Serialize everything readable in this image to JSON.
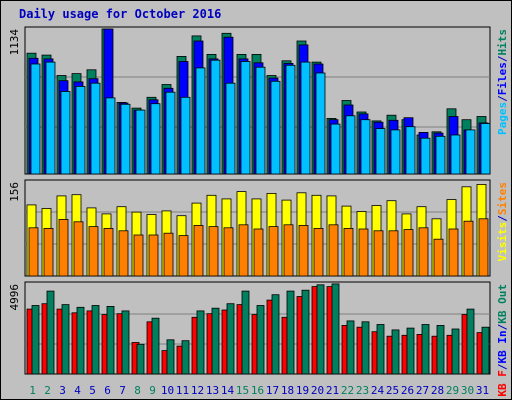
{
  "title": "Daily usage for October 2016",
  "colors": {
    "background": "#c0c0c0",
    "title": "#0000c0",
    "grid": "#808080",
    "pages": "#00c0ff",
    "files": "#0000ff",
    "hits": "#00805f",
    "visits": "#ffff00",
    "sites": "#ff8000",
    "kb_in": "#00805f",
    "kb_out": "#008080",
    "kb_f": "#ff0000",
    "weekend_label": "#00805f",
    "weekday_label": "#0000c0"
  },
  "chart_data": [
    {
      "type": "bar",
      "panel": "pages-files-hits",
      "ymax_label": "1134",
      "ylim": [
        0,
        1134
      ],
      "legend": [
        "Pages",
        "/",
        "Files",
        "/",
        "Hits"
      ],
      "categories": [
        "1",
        "2",
        "3",
        "4",
        "5",
        "6",
        "7",
        "8",
        "9",
        "10",
        "11",
        "12",
        "13",
        "14",
        "15",
        "16",
        "17",
        "18",
        "19",
        "20",
        "21",
        "22",
        "23",
        "24",
        "25",
        "26",
        "27",
        "28",
        "29",
        "30",
        "31"
      ],
      "series": [
        {
          "name": "Hits",
          "values": [
            945,
            930,
            770,
            785,
            815,
            1134,
            560,
            515,
            600,
            700,
            920,
            1080,
            935,
            1100,
            935,
            935,
            770,
            885,
            1040,
            875,
            435,
            575,
            485,
            415,
            460,
            425,
            305,
            330,
            510,
            425,
            450
          ]
        },
        {
          "name": "Files",
          "values": [
            905,
            900,
            730,
            720,
            745,
            1134,
            555,
            500,
            580,
            670,
            880,
            1040,
            900,
            1070,
            900,
            870,
            750,
            865,
            1010,
            860,
            425,
            540,
            470,
            405,
            420,
            440,
            325,
            320,
            450,
            345,
            400
          ]
        },
        {
          "name": "Pages",
          "values": [
            860,
            875,
            645,
            685,
            710,
            595,
            545,
            500,
            550,
            640,
            600,
            830,
            890,
            710,
            880,
            835,
            725,
            850,
            875,
            790,
            390,
            455,
            425,
            355,
            345,
            370,
            280,
            295,
            305,
            345,
            395
          ]
        }
      ]
    },
    {
      "type": "bar",
      "panel": "visits-sites",
      "ymax_label": "156",
      "ylim": [
        0,
        156
      ],
      "legend": [
        "Visits",
        "/",
        "Sites"
      ],
      "categories": [
        "1",
        "2",
        "3",
        "4",
        "5",
        "6",
        "7",
        "8",
        "9",
        "10",
        "11",
        "12",
        "13",
        "14",
        "15",
        "16",
        "17",
        "18",
        "19",
        "20",
        "21",
        "22",
        "23",
        "24",
        "25",
        "26",
        "27",
        "28",
        "29",
        "30",
        "31"
      ],
      "series": [
        {
          "name": "Visits",
          "values": [
            118,
            112,
            133,
            135,
            113,
            103,
            115,
            106,
            102,
            108,
            100,
            121,
            134,
            128,
            140,
            128,
            137,
            126,
            138,
            134,
            133,
            116,
            107,
            117,
            125,
            103,
            115,
            95,
            127,
            148,
            152
          ]
        },
        {
          "name": "Sites",
          "values": [
            80,
            79,
            94,
            90,
            82,
            79,
            75,
            68,
            68,
            71,
            67,
            84,
            82,
            80,
            85,
            78,
            82,
            85,
            84,
            79,
            85,
            79,
            78,
            75,
            75,
            77,
            80,
            61,
            78,
            91,
            95
          ]
        }
      ]
    },
    {
      "type": "bar",
      "panel": "kbytes",
      "ymax_label": "4996",
      "ylim": [
        0,
        4996
      ],
      "legend": [
        "KB F",
        "/",
        "KB In",
        "/",
        "KB Out"
      ],
      "categories": [
        "1",
        "2",
        "3",
        "4",
        "5",
        "6",
        "7",
        "8",
        "9",
        "10",
        "11",
        "12",
        "13",
        "14",
        "15",
        "16",
        "17",
        "18",
        "19",
        "20",
        "21",
        "22",
        "23",
        "24",
        "25",
        "26",
        "27",
        "28",
        "29",
        "30",
        "31"
      ],
      "series": [
        {
          "name": "KB F",
          "values": [
            3600,
            3900,
            3600,
            3400,
            3500,
            3300,
            3350,
            1750,
            2900,
            1300,
            1550,
            3150,
            3350,
            3550,
            3850,
            3300,
            4100,
            3150,
            4300,
            4850,
            4850,
            2700,
            2600,
            2350,
            2100,
            2150,
            2200,
            2100,
            2150,
            3300,
            2300
          ]
        },
        {
          "name": "KB Out",
          "values": [
            3800,
            4600,
            3850,
            3700,
            3800,
            3750,
            3500,
            1650,
            3100,
            1900,
            1850,
            3500,
            3650,
            3900,
            4600,
            3800,
            4400,
            4600,
            4650,
            4950,
            5000,
            2950,
            2900,
            2750,
            2450,
            2550,
            2750,
            2700,
            2500,
            3600,
            2600
          ]
        }
      ]
    }
  ],
  "day_labels": [
    {
      "text": "1",
      "weekend": true
    },
    {
      "text": "2",
      "weekend": true
    },
    {
      "text": "3",
      "weekend": false
    },
    {
      "text": "4",
      "weekend": false
    },
    {
      "text": "5",
      "weekend": false
    },
    {
      "text": "6",
      "weekend": false
    },
    {
      "text": "7",
      "weekend": false
    },
    {
      "text": "8",
      "weekend": true
    },
    {
      "text": "9",
      "weekend": true
    },
    {
      "text": "10",
      "weekend": false
    },
    {
      "text": "11",
      "weekend": false
    },
    {
      "text": "12",
      "weekend": false
    },
    {
      "text": "13",
      "weekend": false
    },
    {
      "text": "14",
      "weekend": false
    },
    {
      "text": "15",
      "weekend": true
    },
    {
      "text": "16",
      "weekend": true
    },
    {
      "text": "17",
      "weekend": false
    },
    {
      "text": "18",
      "weekend": false
    },
    {
      "text": "19",
      "weekend": false
    },
    {
      "text": "20",
      "weekend": false
    },
    {
      "text": "21",
      "weekend": false
    },
    {
      "text": "22",
      "weekend": true
    },
    {
      "text": "23",
      "weekend": true
    },
    {
      "text": "24",
      "weekend": false
    },
    {
      "text": "25",
      "weekend": false
    },
    {
      "text": "26",
      "weekend": false
    },
    {
      "text": "27",
      "weekend": false
    },
    {
      "text": "28",
      "weekend": false
    },
    {
      "text": "29",
      "weekend": true
    },
    {
      "text": "30",
      "weekend": true
    },
    {
      "text": "31",
      "weekend": false
    }
  ]
}
